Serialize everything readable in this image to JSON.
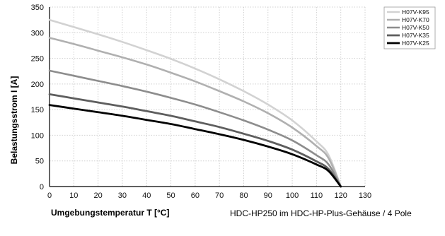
{
  "chart_data": {
    "type": "line",
    "xlabel": "Umgebungstemperatur T [°C]",
    "ylabel": "Belastungsstrom I [A]",
    "xlim": [
      0,
      130
    ],
    "ylim": [
      0,
      350
    ],
    "xticks": [
      0,
      10,
      20,
      30,
      40,
      50,
      60,
      70,
      80,
      90,
      100,
      110,
      120,
      130
    ],
    "yticks": [
      0,
      50,
      100,
      150,
      200,
      250,
      300,
      350
    ],
    "grid": true,
    "legend_position": "top-right",
    "x": [
      0,
      10,
      20,
      30,
      40,
      50,
      60,
      70,
      80,
      90,
      100,
      110,
      115,
      120
    ],
    "series": [
      {
        "name": "H07V-K95",
        "color": "#d2d2d2",
        "width": 2.6,
        "values": [
          325,
          311,
          297,
          282,
          266,
          249,
          230,
          209,
          186,
          160,
          129,
          88,
          61,
          0
        ]
      },
      {
        "name": "H07V-K70",
        "color": "#b0b0b0",
        "width": 2.6,
        "values": [
          290,
          278,
          265,
          252,
          238,
          222,
          205,
          186,
          166,
          143,
          115,
          79,
          55,
          0
        ]
      },
      {
        "name": "H07V-K50",
        "color": "#8d8d8d",
        "width": 2.6,
        "values": [
          226,
          216,
          206,
          196,
          185,
          173,
          160,
          145,
          129,
          111,
          90,
          61,
          43,
          0
        ]
      },
      {
        "name": "H07V-K35",
        "color": "#5e5e5e",
        "width": 2.8,
        "values": [
          180,
          172,
          164,
          156,
          147,
          138,
          127,
          116,
          103,
          89,
          72,
          49,
          34,
          0
        ]
      },
      {
        "name": "H07V-K25",
        "color": "#000000",
        "width": 2.8,
        "values": [
          159,
          152,
          145,
          138,
          130,
          122,
          112,
          102,
          91,
          78,
          63,
          43,
          30,
          0
        ]
      }
    ]
  },
  "caption": "HDC-HP250 im HDC-HP-Plus-Gehäuse / 4 Pole"
}
